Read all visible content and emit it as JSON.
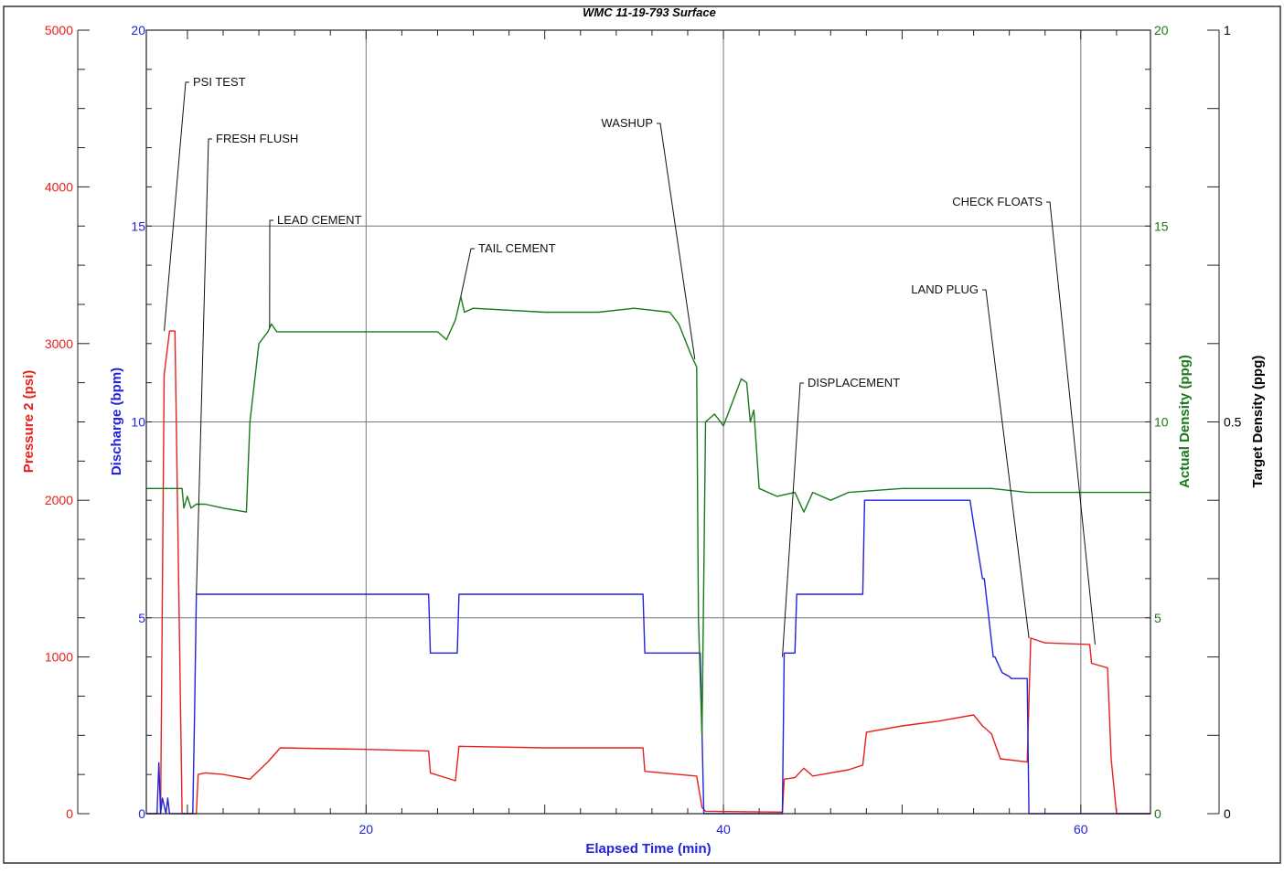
{
  "chart_data": {
    "type": "line",
    "title": "WMC 11-19-793 Surface",
    "xlabel": "Elapsed Time (min)",
    "xlim": [
      7.7,
      63.9
    ],
    "x_ticks": [
      "20",
      "40",
      "60"
    ],
    "x_tick_values": [
      20,
      40,
      60
    ],
    "grid": true,
    "axes": [
      {
        "id": "pressure",
        "label": "Pressure 2 (psi)",
        "color": "#e8201c",
        "lim": [
          0,
          5000
        ],
        "ticks": [
          "0",
          "1000",
          "2000",
          "3000",
          "4000",
          "5000"
        ],
        "tick_values": [
          0,
          1000,
          2000,
          3000,
          4000,
          5000
        ]
      },
      {
        "id": "discharge",
        "label": "Discharge (bpm)",
        "color": "#2222dd",
        "lim": [
          0,
          20
        ],
        "ticks": [
          "0",
          "5",
          "10",
          "15",
          "20"
        ],
        "tick_values": [
          0,
          5,
          10,
          15,
          20
        ]
      },
      {
        "id": "density",
        "label": "Actual Density (ppg)",
        "color": "#1a7a1a",
        "lim": [
          0,
          20
        ],
        "ticks": [
          "0",
          "5",
          "10",
          "15",
          "20"
        ],
        "tick_values": [
          0,
          5,
          10,
          15,
          20
        ]
      },
      {
        "id": "target",
        "label": "Target Density (ppg)",
        "color": "#000000",
        "lim": [
          0,
          1
        ],
        "ticks": [
          "0",
          "0.5",
          "1"
        ],
        "tick_values": [
          0,
          0.5,
          1
        ]
      }
    ],
    "series": [
      {
        "axis": "pressure",
        "color": "#e8201c",
        "x": [
          7.7,
          8.5,
          8.7,
          9.0,
          9.3,
          9.7,
          9.8,
          10.0,
          10.5,
          10.6,
          11.0,
          12.0,
          13.5,
          14.5,
          15.2,
          20.0,
          23.5,
          23.6,
          25.0,
          25.2,
          30.0,
          35.5,
          35.6,
          38.5,
          38.8,
          39.0,
          43.3,
          43.4,
          44.0,
          44.5,
          45.0,
          47.0,
          47.8,
          48.0,
          50.0,
          52.0,
          54.0,
          54.5,
          55.0,
          55.5,
          57.0,
          57.2,
          58.0,
          60.5,
          60.6,
          61.5,
          61.7,
          62.0,
          63.9
        ],
        "y": [
          0,
          0,
          2800,
          3080,
          3080,
          0,
          0,
          0,
          0,
          250,
          260,
          250,
          220,
          330,
          420,
          410,
          400,
          260,
          210,
          430,
          420,
          420,
          270,
          240,
          40,
          15,
          10,
          220,
          230,
          290,
          240,
          280,
          310,
          520,
          560,
          590,
          630,
          560,
          510,
          350,
          330,
          1120,
          1090,
          1080,
          960,
          930,
          350,
          0,
          0
        ]
      },
      {
        "axis": "discharge",
        "color": "#2222dd",
        "x": [
          7.7,
          8.3,
          8.4,
          8.5,
          8.6,
          8.8,
          8.9,
          9.0,
          10.3,
          10.4,
          10.5,
          23.5,
          23.6,
          25.1,
          25.2,
          35.5,
          35.6,
          38.7,
          38.9,
          43.3,
          43.4,
          44.0,
          44.1,
          47.8,
          47.9,
          53.8,
          54.0,
          54.5,
          54.6,
          55.1,
          55.2,
          55.4,
          55.6,
          56.0,
          56.1,
          57.0,
          57.1,
          63.9
        ],
        "y": [
          0,
          0,
          1.3,
          0,
          0.4,
          0,
          0.4,
          0,
          0,
          2.6,
          5.6,
          5.6,
          4.1,
          4.1,
          5.6,
          5.6,
          4.1,
          4.1,
          0,
          0,
          4.1,
          4.1,
          5.6,
          5.6,
          8.0,
          8.0,
          7.4,
          6.0,
          6.0,
          4.0,
          4.0,
          3.8,
          3.6,
          3.5,
          3.45,
          3.45,
          0,
          0
        ]
      },
      {
        "axis": "density",
        "color": "#1a7a1a",
        "x": [
          7.7,
          9.7,
          9.8,
          10.0,
          10.2,
          10.5,
          11.0,
          12.0,
          13.3,
          13.5,
          14.0,
          14.5,
          14.7,
          15.0,
          16.0,
          20.0,
          24.0,
          24.5,
          25.0,
          25.3,
          25.5,
          26.0,
          30.0,
          33.0,
          35.0,
          37.0,
          37.5,
          38.2,
          38.5,
          38.6,
          38.8,
          39.0,
          39.5,
          40.0,
          40.5,
          41.0,
          41.3,
          41.5,
          41.7,
          42.0,
          43.0,
          44.0,
          44.5,
          45.0,
          46.0,
          47.0,
          50.0,
          55.0,
          57.0,
          60.0,
          63.9
        ],
        "y": [
          8.3,
          8.3,
          7.8,
          8.1,
          7.8,
          7.9,
          7.9,
          7.8,
          7.7,
          10.0,
          12.0,
          12.3,
          12.5,
          12.3,
          12.3,
          12.3,
          12.3,
          12.1,
          12.6,
          13.2,
          12.8,
          12.9,
          12.8,
          12.8,
          12.9,
          12.8,
          12.5,
          11.7,
          11.4,
          5.0,
          2.0,
          10.0,
          10.2,
          9.9,
          10.5,
          11.1,
          11.0,
          10.0,
          10.3,
          8.3,
          8.1,
          8.2,
          7.7,
          8.2,
          8.0,
          8.2,
          8.3,
          8.3,
          8.2,
          8.2,
          8.2
        ]
      }
    ],
    "annotations": [
      {
        "text": "PSI TEST",
        "x": 8.7,
        "y": 3080
      },
      {
        "text": "FRESH FLUSH",
        "x": 10.5,
        "y": 1400
      },
      {
        "text": "LEAD CEMENT",
        "x": 14.6,
        "y": 3100
      },
      {
        "text": "TAIL CEMENT",
        "x": 25.3,
        "y": 3300
      },
      {
        "text": "WASHUP",
        "x": 38.4,
        "y": 2900
      },
      {
        "text": "DISPLACEMENT",
        "x": 43.3,
        "y": 1000
      },
      {
        "text": "LAND PLUG",
        "x": 57.1,
        "y": 1120
      },
      {
        "text": "CHECK FLOATS",
        "x": 60.8,
        "y": 1080
      }
    ]
  }
}
